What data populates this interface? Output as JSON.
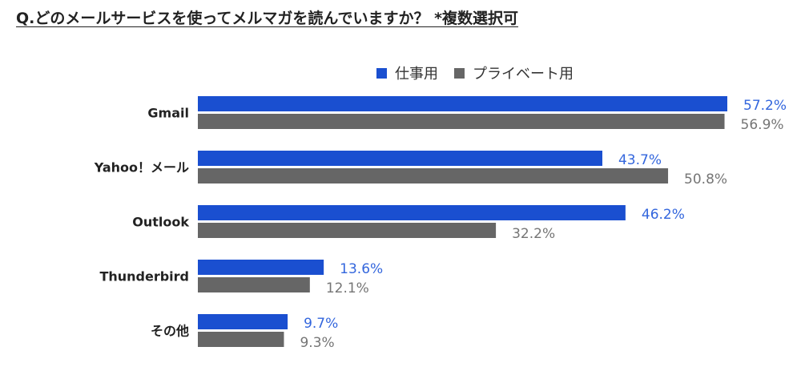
{
  "page": {
    "title": "Q.どのメールサービスを使ってメルマガを読んでいますか？ *複数選択可"
  },
  "colors": {
    "work": "#1a4fd0",
    "private": "#666666",
    "work_label": "#3366dd",
    "private_label": "#757575",
    "category_label": "#222222"
  },
  "chart_data": {
    "type": "bar",
    "orientation": "horizontal",
    "title": "Q.どのメールサービスを使ってメルマガを読んでいますか？ *複数選択可",
    "categories": [
      "Gmail",
      "Yahoo！メール",
      "Outlook",
      "Thunderbird",
      "その他"
    ],
    "series": [
      {
        "name": "仕事用",
        "values": [
          57.2,
          43.7,
          46.2,
          13.6,
          9.7
        ],
        "labels": [
          "57.2%",
          "43.7%",
          "46.2%",
          "13.6%",
          "9.7%"
        ]
      },
      {
        "name": "プライベート用",
        "values": [
          56.9,
          50.8,
          32.2,
          12.1,
          9.3
        ],
        "labels": [
          "56.9%",
          "50.8%",
          "32.2%",
          "12.1%",
          "9.3%"
        ]
      }
    ],
    "xlim": [
      0,
      57.2
    ],
    "legend": "top",
    "grid": false,
    "unit": "%"
  }
}
